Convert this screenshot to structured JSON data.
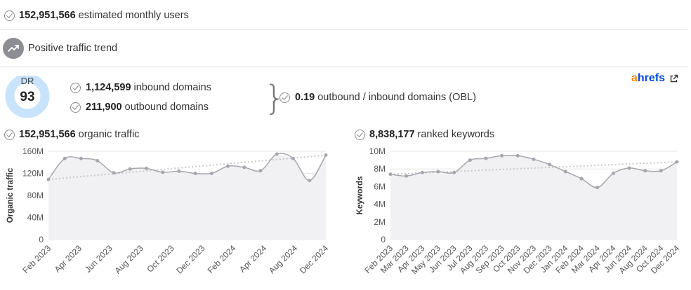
{
  "summary": {
    "monthly_users_value": "152,951,566",
    "monthly_users_label": "estimated monthly users",
    "trend_label": "Positive traffic trend"
  },
  "dr": {
    "label": "DR",
    "value": "93",
    "rating": 93
  },
  "domains": {
    "inbound_value": "1,124,599",
    "inbound_label": "inbound domains",
    "outbound_value": "211,900",
    "outbound_label": "outbound domains",
    "obl_value": "0.19",
    "obl_label": "outbound / inbound domains (OBL)"
  },
  "brand": {
    "a": "a",
    "rest": "hrefs"
  },
  "colors": {
    "line": "#a6a6ad",
    "fill": "#f1f1f3",
    "trend": "#c8c8c8",
    "dr_ring": "#c8e3fb",
    "brand_orange": "#ff8800",
    "brand_blue": "#054ada"
  },
  "icons": [
    "check-circle-icon",
    "trending-up-icon",
    "external-link-icon"
  ],
  "chart_data": [
    {
      "type": "line",
      "title_value": "152,951,566",
      "title_label": "organic traffic",
      "ylabel": "Organic traffic",
      "yticks": [
        "0",
        "40M",
        "80M",
        "120M",
        "160M"
      ],
      "ylim": [
        0,
        160
      ],
      "unit": "M",
      "xtick_labels": [
        "Feb 2023",
        "Apr 2023",
        "Jun 2023",
        "Aug 2023",
        "Oct 2023",
        "Dec 2023",
        "Feb 2024",
        "Apr 2024",
        "Aug 2024",
        "Dec 2024"
      ],
      "values": [
        109,
        147,
        147,
        143,
        121,
        128,
        129,
        122,
        124,
        120,
        120,
        133,
        131,
        125,
        155,
        147,
        107,
        153
      ],
      "trend": [
        109,
        153
      ],
      "grid": true
    },
    {
      "type": "line",
      "title_value": "8,838,177",
      "title_label": "ranked keywords",
      "ylabel": "Keywords",
      "yticks": [
        "0",
        "2M",
        "4M",
        "6M",
        "8M",
        "10M"
      ],
      "ylim": [
        0,
        10
      ],
      "unit": "M",
      "xtick_labels": [
        "Feb 2023",
        "Mar 2023",
        "Apr 2023",
        "May 2023",
        "Jun 2023",
        "Jul 2023",
        "Aug 2023",
        "Sep 2023",
        "Oct 2023",
        "Nov 2023",
        "Dec 2023",
        "Jan 2024",
        "Feb 2024",
        "Mar 2024",
        "Apr 2024",
        "Jun 2024",
        "Aug 2024",
        "Oct 2024",
        "Dec 2024"
      ],
      "values": [
        7.4,
        7.2,
        7.6,
        7.7,
        7.6,
        9.0,
        9.2,
        9.5,
        9.5,
        9.1,
        8.5,
        7.7,
        6.9,
        5.9,
        7.5,
        8.1,
        7.8,
        7.8,
        8.8
      ],
      "trend": [
        7.4,
        8.8
      ],
      "grid": true
    }
  ]
}
